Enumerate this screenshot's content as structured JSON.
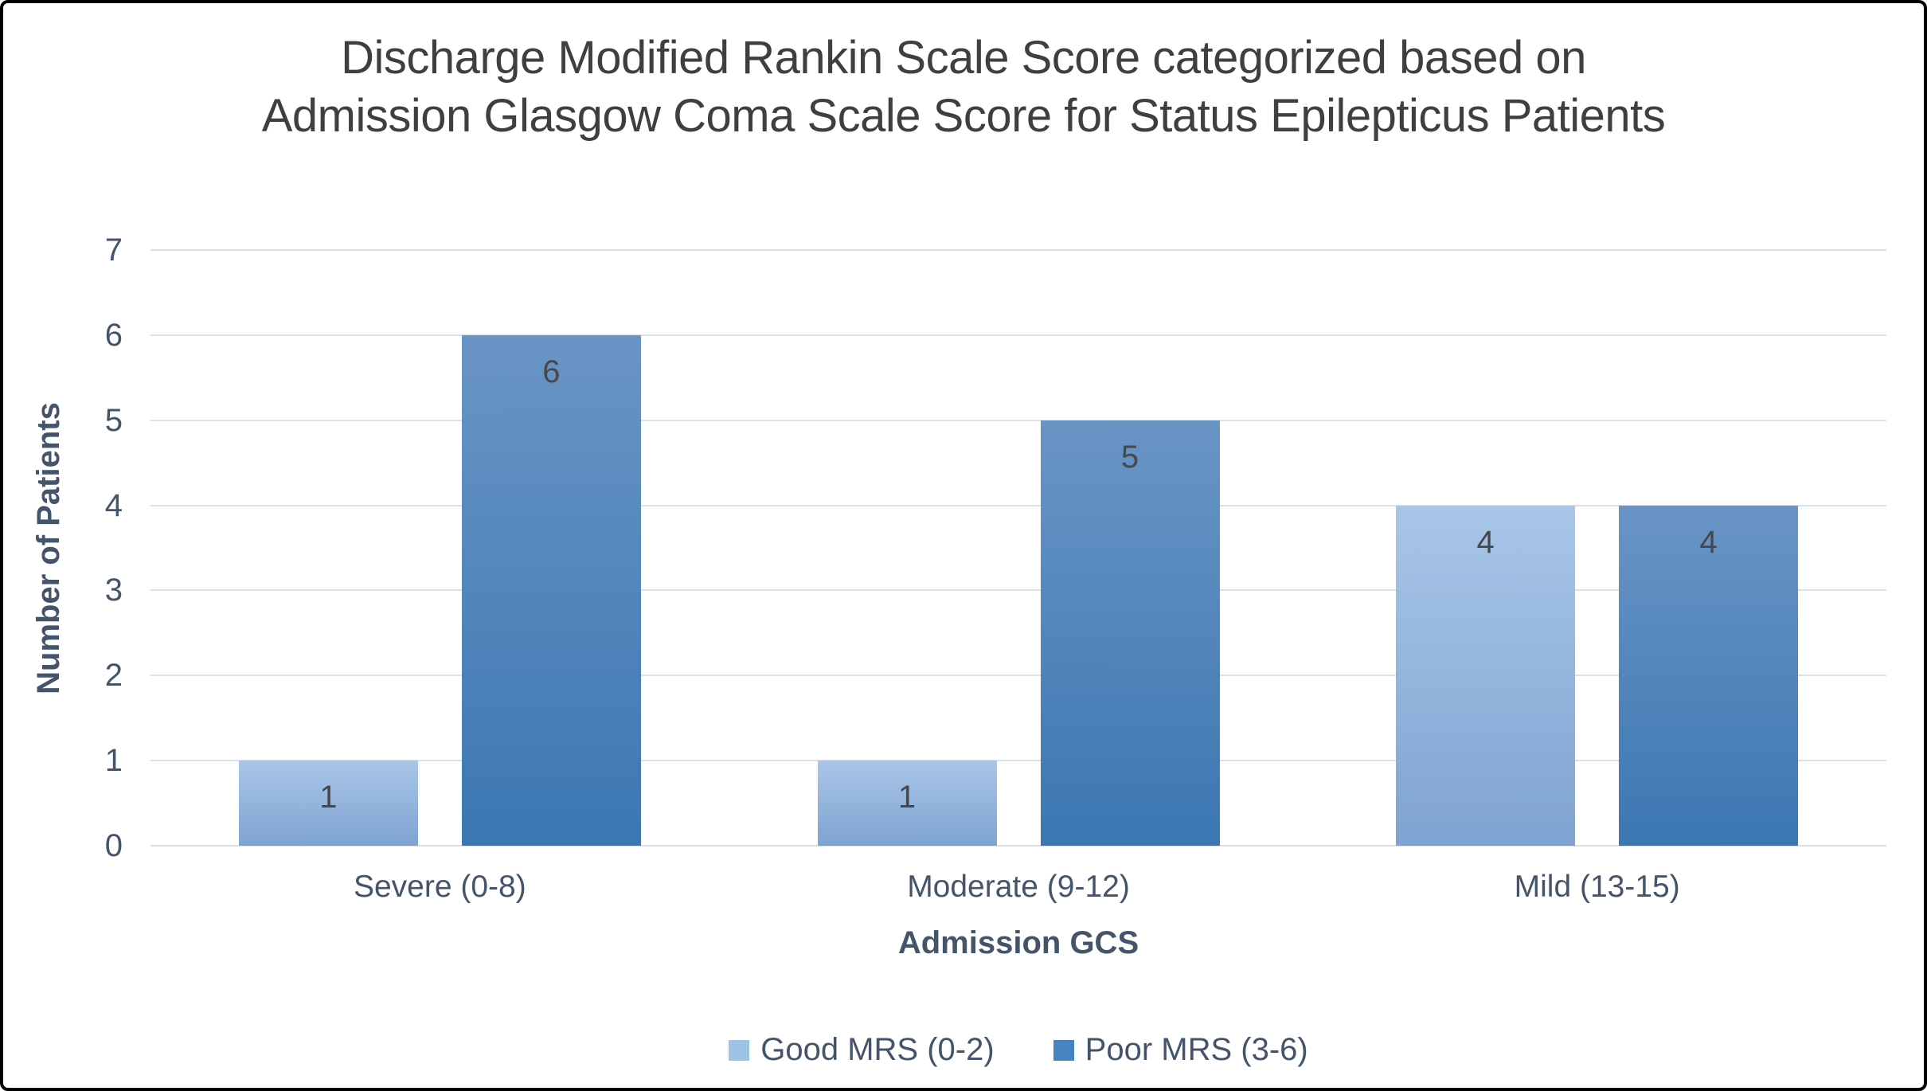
{
  "chart_data": {
    "type": "bar",
    "title": "Discharge Modified Rankin Scale Score categorized based on Admission Glasgow Coma Scale Score for Status Epilepticus Patients",
    "xlabel": "Admission GCS",
    "ylabel": "Number of Patients",
    "categories": [
      "Severe (0-8)",
      "Moderate (9-12)",
      "Mild (13-15)"
    ],
    "series": [
      {
        "name": "Good MRS (0-2)",
        "values": [
          1,
          1,
          4
        ],
        "color_top": "#a9c6e8",
        "color_bottom": "#7fa3d1",
        "legend_color": "#9dc3e6"
      },
      {
        "name": "Poor MRS (3-6)",
        "values": [
          6,
          5,
          4
        ],
        "color_top": "#6995c5",
        "color_bottom": "#3c77b2",
        "legend_color": "#4583c1"
      }
    ],
    "ylim": [
      0,
      7
    ],
    "ytick_step": 1,
    "grid": true,
    "legend_position": "bottom",
    "data_labels": true,
    "colors": {
      "title_text": "#3f3f3f",
      "axis_text": "#44546a",
      "data_label_text": "#45484d",
      "gridline": "#dadfe8",
      "frame_border": "#000000",
      "background": "#ffffff"
    }
  }
}
